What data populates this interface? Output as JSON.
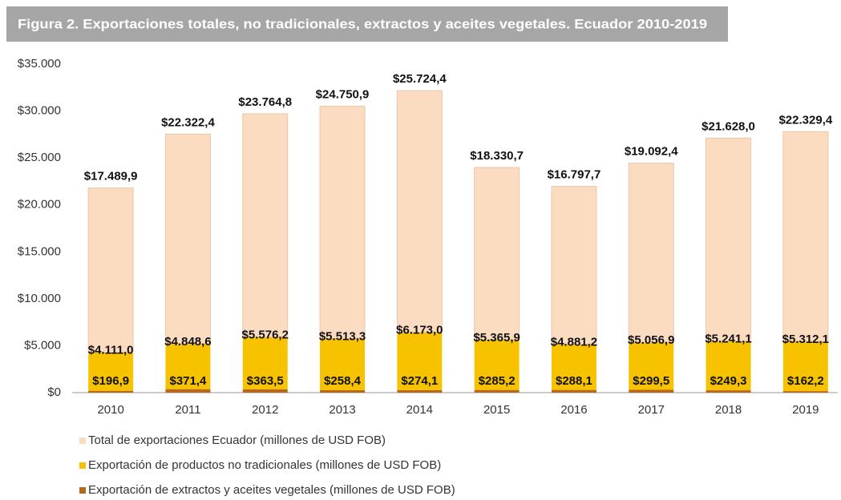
{
  "chart_data": {
    "type": "stacked_bar",
    "title": "Figura 2. Exportaciones totales, no tradicionales, extractos y aceites vegetales. Ecuador 2010-2019",
    "categories": [
      "2010",
      "2011",
      "2012",
      "2013",
      "2014",
      "2015",
      "2016",
      "2017",
      "2018",
      "2019"
    ],
    "series": [
      {
        "name": "Total de exportaciones Ecuador (millones de USD FOB)",
        "color": "#fcdcc1",
        "values": [
          17489.9,
          22322.4,
          23764.8,
          24750.9,
          25724.4,
          18330.7,
          16797.7,
          19092.4,
          21628.0,
          22329.4
        ],
        "value_labels": [
          "$17.489,9",
          "$22.322,4",
          "$23.764,8",
          "$24.750,9",
          "$25.724,4",
          "$18.330,7",
          "$16.797,7",
          "$19.092,4",
          "$21.628,0",
          "$22.329,4"
        ]
      },
      {
        "name": "Exportación de productos no tradicionales (millones de USD FOB)",
        "color": "#f7c300",
        "values": [
          4111.0,
          4848.6,
          5576.2,
          5513.3,
          6173.0,
          5365.9,
          4881.2,
          5056.9,
          5241.1,
          5312.1
        ],
        "value_labels": [
          "$4.111,0",
          "$4.848,6",
          "$5.576,2",
          "$5.513,3",
          "$6.173,0",
          "$5.365,9",
          "$4.881,2",
          "$5.056,9",
          "$5.241,1",
          "$5.312,1"
        ]
      },
      {
        "name": "Exportación de extractos y aceites vegetales (millones de USD FOB)",
        "color": "#b8681c",
        "values": [
          196.9,
          371.4,
          363.5,
          258.4,
          274.1,
          285.2,
          288.1,
          299.5,
          249.3,
          162.2
        ],
        "value_labels": [
          "$196,9",
          "$371,4",
          "$363,5",
          "$258,4",
          "$274,1",
          "$285,2",
          "$288,1",
          "$299,5",
          "$249,3",
          "$162,2"
        ]
      }
    ],
    "ylim": [
      0,
      35000
    ],
    "yticks": [
      {
        "value": 0,
        "label": "$0"
      },
      {
        "value": 5000,
        "label": "$5.000"
      },
      {
        "value": 10000,
        "label": "$10.000"
      },
      {
        "value": 15000,
        "label": "$15.000"
      },
      {
        "value": 20000,
        "label": "$20.000"
      },
      {
        "value": 25000,
        "label": "$25.000"
      },
      {
        "value": 30000,
        "label": "$30.000"
      },
      {
        "value": 35000,
        "label": "$35.000"
      }
    ],
    "grid": false
  }
}
